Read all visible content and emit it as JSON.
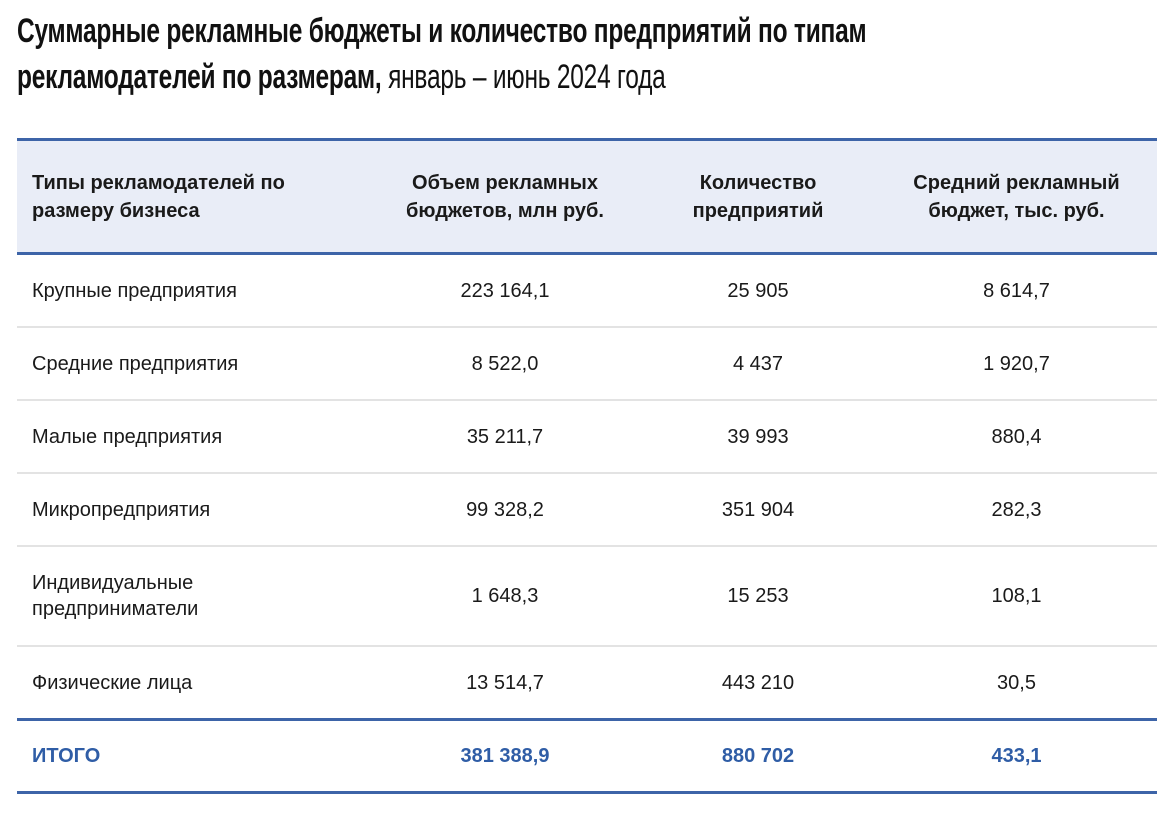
{
  "title": {
    "bold": "Суммарные рекламные бюджеты и количество предприятий по типам рекламодателей по размерам,",
    "period": "январь – июнь 2024 года"
  },
  "table": {
    "headers": [
      "Типы рекламодателей по размеру бизнеса",
      "Объем рекламных бюджетов, млн руб.",
      "Количество предприятий",
      "Средний рекламный бюджет, тыс. руб."
    ],
    "rows": [
      [
        "Крупные предприятия",
        "223 164,1",
        "25 905",
        "8 614,7"
      ],
      [
        "Средние предприятия",
        "8 522,0",
        "4 437",
        "1 920,7"
      ],
      [
        "Малые предприятия",
        "35 211,7",
        "39 993",
        "880,4"
      ],
      [
        "Микропредприятия",
        "99 328,2",
        "351 904",
        "282,3"
      ],
      [
        "Индивидуальные предприниматели",
        "1 648,3",
        "15 253",
        "108,1"
      ],
      [
        "Физические лица",
        "13 514,7",
        "443 210",
        "30,5"
      ]
    ],
    "total": [
      "ИТОГО",
      "381 388,9",
      "880 702",
      "433,1"
    ]
  },
  "colors": {
    "accent": "#2f5da6",
    "header_bg": "#e9edf7",
    "rule": "#3d64a8"
  }
}
